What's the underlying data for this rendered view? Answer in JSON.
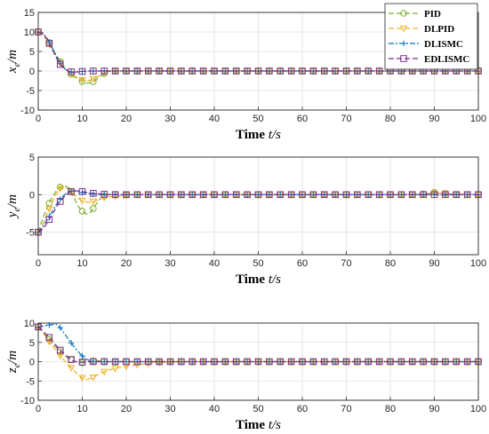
{
  "figure": {
    "legend": {
      "placement": "top-right of first panel",
      "entries": [
        {
          "name": "PID",
          "color": "#77AC30",
          "dash": "6,3",
          "marker": "circle"
        },
        {
          "name": "DLPID",
          "color": "#EDB120",
          "dash": "6,3",
          "marker": "triangle-down"
        },
        {
          "name": "DLISMC",
          "color": "#0072BD",
          "dash": "6,2,2,2",
          "marker": "plus"
        },
        {
          "name": "EDLISMC",
          "color": "#7E2F8E",
          "dash": "6,3",
          "marker": "square"
        }
      ]
    },
    "xlabel_main": "Time ",
    "xlabel_var": "t/s"
  },
  "chart_data": [
    {
      "type": "line",
      "ylabel_main": "x",
      "ylabel_sub": "e",
      "ylabel_unit": "/m",
      "xlim": [
        0,
        100
      ],
      "ylim": [
        -10,
        15
      ],
      "xticks": [
        0,
        10,
        20,
        30,
        40,
        50,
        60,
        70,
        80,
        90,
        100
      ],
      "yticks": [
        -10,
        -5,
        0,
        5,
        10,
        15
      ],
      "grid": true,
      "series": [
        {
          "name": "PID",
          "x": [
            0,
            1,
            2,
            3,
            4,
            5,
            6,
            7,
            8,
            9,
            10,
            11,
            12,
            13,
            14,
            15,
            16,
            18,
            20,
            25,
            30,
            40,
            50,
            60,
            70,
            80,
            90,
            100
          ],
          "y": [
            10,
            9.6,
            8.2,
            6.3,
            4.3,
            2.4,
            0.9,
            -0.3,
            -1.3,
            -2.1,
            -2.7,
            -3.1,
            -3.0,
            -2.4,
            -1.4,
            -0.6,
            -0.1,
            0,
            0,
            0,
            0,
            0,
            0,
            0,
            0,
            0,
            0,
            0
          ]
        },
        {
          "name": "DLPID",
          "x": [
            0,
            1,
            2,
            3,
            4,
            5,
            6,
            7,
            8,
            9,
            10,
            11,
            12,
            13,
            14,
            15,
            16,
            18,
            20,
            25,
            30,
            40,
            50,
            60,
            70,
            80,
            90,
            100
          ],
          "y": [
            10,
            9.3,
            7.8,
            5.9,
            3.9,
            2.1,
            0.7,
            -0.4,
            -1.2,
            -1.8,
            -2.3,
            -2.5,
            -2.3,
            -1.8,
            -1.1,
            -0.5,
            -0.1,
            0,
            0,
            0,
            0,
            0,
            0,
            0,
            0,
            0,
            0,
            0
          ]
        },
        {
          "name": "DLISMC",
          "x": [
            0,
            1,
            2,
            3,
            4,
            5,
            6,
            7,
            8,
            9,
            10,
            12,
            14,
            16,
            20,
            25,
            30,
            40,
            50,
            60,
            70,
            80,
            90,
            100
          ],
          "y": [
            10,
            9.8,
            8.4,
            6.3,
            4.0,
            2.0,
            0.6,
            -0.2,
            -0.4,
            -0.3,
            -0.1,
            0,
            0,
            0,
            0,
            0,
            0,
            0,
            0,
            0,
            0,
            0,
            0,
            0
          ]
        },
        {
          "name": "EDLISMC",
          "x": [
            0,
            1,
            2,
            3,
            4,
            5,
            6,
            7,
            8,
            9,
            10,
            12,
            14,
            16,
            20,
            25,
            30,
            40,
            50,
            60,
            70,
            80,
            90,
            100
          ],
          "y": [
            10,
            9.6,
            8.2,
            6.0,
            3.6,
            1.7,
            0.5,
            -0.1,
            -0.3,
            -0.2,
            -0.1,
            0,
            0,
            0,
            0,
            0,
            0,
            0,
            0,
            0,
            0,
            0,
            0,
            0
          ]
        }
      ]
    },
    {
      "type": "line",
      "ylabel_main": "y",
      "ylabel_sub": "e",
      "ylabel_unit": "/m",
      "xlim": [
        0,
        100
      ],
      "ylim": [
        -8,
        5
      ],
      "xticks": [
        0,
        10,
        20,
        30,
        40,
        50,
        60,
        70,
        80,
        90,
        100
      ],
      "yticks": [
        -5,
        0,
        5
      ],
      "grid": true,
      "series": [
        {
          "name": "PID",
          "x": [
            0,
            1,
            2,
            3,
            4,
            5,
            6,
            7,
            8,
            9,
            10,
            11,
            12,
            13,
            14,
            15,
            16,
            17,
            18,
            20,
            25,
            30,
            40,
            50,
            60,
            70,
            80,
            85,
            88,
            90,
            92,
            95,
            100
          ],
          "y": [
            -5,
            -3.2,
            -1.8,
            -0.5,
            0.4,
            1.0,
            1.2,
            0.9,
            -0.2,
            -1.5,
            -2.2,
            -2.6,
            -2.3,
            -1.4,
            -0.6,
            -0.2,
            0,
            0.1,
            0,
            0,
            0,
            0,
            0,
            0,
            0,
            0,
            0,
            0,
            0.1,
            0.3,
            0.2,
            0,
            0
          ]
        },
        {
          "name": "DLPID",
          "x": [
            0,
            1,
            2,
            3,
            4,
            5,
            6,
            7,
            8,
            9,
            10,
            11,
            12,
            13,
            14,
            15,
            16,
            18,
            20,
            22,
            25,
            30,
            40,
            50,
            60,
            70,
            80,
            85,
            88,
            90,
            92,
            95,
            100
          ],
          "y": [
            -5,
            -4.0,
            -2.6,
            -1.2,
            0,
            0.8,
            1.1,
            0.7,
            0.1,
            -0.5,
            -0.8,
            -1.0,
            -1.0,
            -0.8,
            -0.6,
            -0.4,
            -0.3,
            -0.2,
            -0.1,
            0,
            0,
            0,
            0,
            0,
            0,
            0,
            0,
            0,
            0.1,
            0.2,
            0.2,
            0.1,
            0
          ]
        },
        {
          "name": "DLISMC",
          "x": [
            0,
            1,
            2,
            3,
            4,
            5,
            6,
            7,
            8,
            9,
            10,
            11,
            12,
            14,
            16,
            18,
            20,
            25,
            30,
            40,
            50,
            60,
            70,
            80,
            90,
            100
          ],
          "y": [
            -5,
            -4.3,
            -3.4,
            -2.4,
            -1.4,
            -0.6,
            0,
            0.4,
            0.5,
            0.4,
            0.3,
            0.2,
            0.1,
            0,
            0,
            0,
            0,
            0,
            0,
            0,
            0,
            0,
            0,
            0,
            0,
            0
          ]
        },
        {
          "name": "EDLISMC",
          "x": [
            0,
            1,
            2,
            3,
            4,
            5,
            6,
            7,
            8,
            9,
            10,
            11,
            12,
            14,
            16,
            18,
            20,
            25,
            30,
            40,
            50,
            60,
            70,
            80,
            90,
            100
          ],
          "y": [
            -5,
            -4.6,
            -3.8,
            -2.8,
            -1.8,
            -0.9,
            -0.2,
            0.3,
            0.5,
            0.5,
            0.4,
            0.3,
            0.2,
            0.1,
            0,
            0,
            0,
            0,
            0,
            0,
            0,
            0,
            0,
            0,
            0,
            0
          ]
        }
      ]
    },
    {
      "type": "line",
      "ylabel_main": "z",
      "ylabel_sub": "e",
      "ylabel_unit": "/m",
      "xlim": [
        0,
        100
      ],
      "ylim": [
        -10,
        10
      ],
      "xticks": [
        0,
        10,
        20,
        30,
        40,
        50,
        60,
        70,
        80,
        90,
        100
      ],
      "yticks": [
        -10,
        -5,
        0,
        5,
        10
      ],
      "grid": true,
      "series": [
        {
          "name": "PID",
          "x": [
            0,
            1,
            2,
            3,
            4,
            5,
            6,
            7,
            8,
            9,
            10,
            11,
            12,
            13,
            14,
            15,
            16,
            18,
            20,
            25,
            30,
            40,
            50,
            60,
            70,
            80,
            90,
            100
          ],
          "y": [
            9,
            7.8,
            6.4,
            5.0,
            3.8,
            2.6,
            1.6,
            0.8,
            0.2,
            -0.2,
            -0.3,
            -0.2,
            0.1,
            0.3,
            0.2,
            0.1,
            0,
            0,
            0,
            0,
            0,
            0,
            0,
            0,
            0,
            0,
            0,
            0
          ]
        },
        {
          "name": "DLPID",
          "x": [
            0,
            1,
            2,
            3,
            4,
            5,
            6,
            7,
            8,
            9,
            10,
            11,
            12,
            13,
            14,
            16,
            18,
            20,
            22,
            24,
            26,
            28,
            30,
            35,
            40,
            50,
            60,
            70,
            80,
            90,
            100
          ],
          "y": [
            9,
            7.6,
            6.0,
            4.4,
            2.9,
            1.5,
            0.2,
            -1.0,
            -2.2,
            -3.3,
            -4.2,
            -4.6,
            -4.3,
            -3.8,
            -3.0,
            -2.2,
            -1.6,
            -1.2,
            -0.9,
            -0.6,
            -0.4,
            -0.2,
            -0.1,
            0,
            0,
            0,
            0,
            0,
            0,
            0,
            0
          ]
        },
        {
          "name": "DLISMC",
          "x": [
            0,
            1,
            2,
            3,
            4,
            5,
            6,
            7,
            8,
            9,
            10,
            11,
            12,
            13,
            14,
            16,
            20,
            25,
            30,
            40,
            50,
            60,
            70,
            80,
            90,
            100
          ],
          "y": [
            9,
            9.2,
            9.4,
            9.6,
            9.8,
            8.8,
            7.2,
            5.6,
            4.1,
            2.7,
            1.5,
            0.6,
            0.2,
            0,
            0,
            0,
            0,
            0,
            0,
            0,
            0,
            0,
            0,
            0,
            0,
            0
          ]
        },
        {
          "name": "EDLISMC",
          "x": [
            0,
            1,
            2,
            3,
            4,
            5,
            6,
            7,
            8,
            9,
            10,
            11,
            12,
            14,
            16,
            20,
            25,
            30,
            40,
            50,
            60,
            70,
            80,
            90,
            100
          ],
          "y": [
            9,
            8.0,
            6.9,
            5.6,
            4.3,
            3.0,
            1.9,
            0.9,
            0.2,
            -0.1,
            -0.1,
            0,
            0,
            0,
            0,
            0,
            0,
            0,
            0,
            0,
            0,
            0,
            0,
            0,
            0
          ]
        }
      ]
    }
  ]
}
